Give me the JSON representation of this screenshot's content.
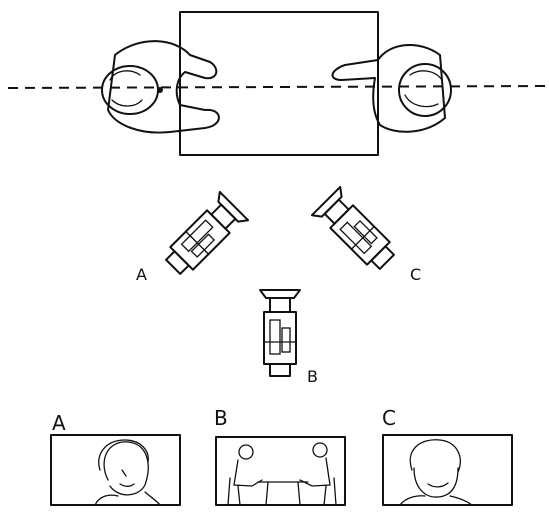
{
  "cameras": [
    {
      "label": "A"
    },
    {
      "label": "B"
    },
    {
      "label": "C"
    }
  ],
  "frames": [
    {
      "label": "A"
    },
    {
      "label": "B"
    },
    {
      "label": "C"
    }
  ]
}
